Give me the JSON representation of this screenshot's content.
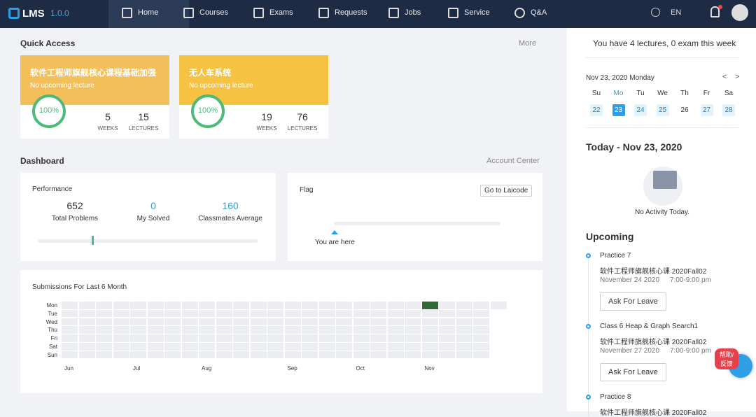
{
  "nav": {
    "logo": "LMS",
    "version": "1.0.0",
    "items": [
      "Home",
      "Courses",
      "Exams",
      "Requests",
      "Jobs",
      "Service",
      "Q&A"
    ],
    "language": "EN"
  },
  "quick_access": {
    "title": "Quick Access",
    "more": "More",
    "courses": [
      {
        "name": "软件工程师旗舰核心课程基础加强",
        "status": "No upcoming lecture",
        "progress": "100%",
        "weeks": 5,
        "weeks_label": "WEEKS",
        "lectures": 15,
        "lectures_label": "LECTURES"
      },
      {
        "name": "无人车系统",
        "status": "No upcoming lecture",
        "progress": "100%",
        "weeks": 19,
        "weeks_label": "WEEKS",
        "lectures": 76,
        "lectures_label": "LECTURES"
      }
    ]
  },
  "dashboard": {
    "title": "Dashboard",
    "link": "Account Center",
    "performance": {
      "title": "Performance",
      "stats": [
        {
          "value": 652,
          "label": "Total Problems"
        },
        {
          "value": 0,
          "label": "My Solved"
        },
        {
          "value": 160,
          "label": "Classmates Average"
        }
      ]
    },
    "flag": {
      "title": "Flag",
      "button": "Go to Laicode",
      "marker": "You are here"
    }
  },
  "submissions": {
    "title": "Submissions For Last 6 Month",
    "days": [
      "Mon",
      "Tue",
      "Wed",
      "Thu",
      "Fri",
      "Sat",
      "Sun"
    ],
    "months": [
      "Jun",
      "Jul",
      "Aug",
      "Sep",
      "Oct",
      "Nov"
    ]
  },
  "sidebar": {
    "summary": "You have 4 lectures, 0 exam this week",
    "calendar": {
      "date": "Nov 23, 2020 Monday",
      "weekdays": [
        "Su",
        "Mo",
        "Tu",
        "We",
        "Th",
        "Fr",
        "Sa"
      ],
      "days": [
        22,
        23,
        24,
        25,
        26,
        27,
        28
      ]
    },
    "today": "Today - Nov 23, 2020",
    "no_activity": "No Activity Today.",
    "upcoming_title": "Upcoming",
    "events": [
      {
        "title": "Practice 7",
        "course": "软件工程师旗舰核心课 2020Fall02",
        "date": "November 24 2020",
        "time": "7:00-9:00 pm",
        "button": "Ask For Leave"
      },
      {
        "title": "Class 6 Heap & Graph Search1",
        "course": "软件工程师旗舰核心课 2020Fall02",
        "date": "November 27 2020",
        "time": "7:00-9:00 pm",
        "button": "Ask For Leave"
      },
      {
        "title": "Practice 8",
        "course": "软件工程师旗舰核心课 2020Fall02"
      }
    ]
  },
  "help": "帮助/反馈"
}
